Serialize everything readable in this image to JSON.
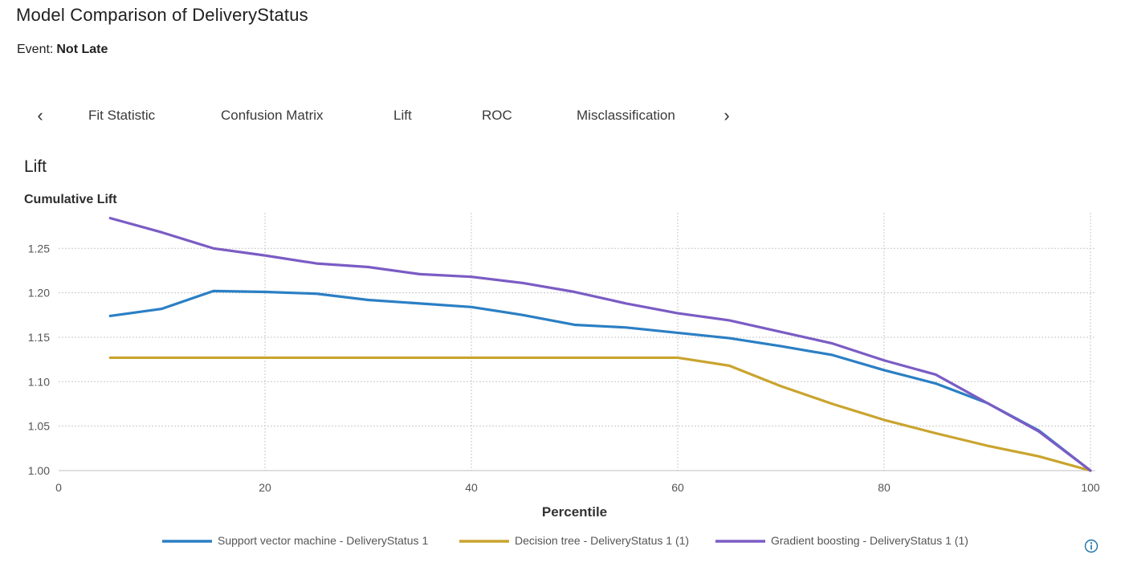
{
  "header": {
    "title": "Model Comparison of DeliveryStatus",
    "event_label": "Event:",
    "event_value": "Not Late"
  },
  "tabs": {
    "prev_icon": "chevron-left-icon",
    "next_icon": "chevron-right-icon",
    "items": [
      {
        "label": "Fit Statistic"
      },
      {
        "label": "Confusion Matrix"
      },
      {
        "label": "Lift"
      },
      {
        "label": "ROC"
      },
      {
        "label": "Misclassification"
      }
    ]
  },
  "section": {
    "title": "Lift"
  },
  "info_icon": "info-icon",
  "chart_data": {
    "type": "line",
    "title": "Cumulative Lift",
    "xlabel": "Percentile",
    "ylabel": "",
    "xlim": [
      0,
      100
    ],
    "ylim": [
      1.0,
      1.29
    ],
    "x_ticks": [
      0,
      20,
      40,
      60,
      80,
      100
    ],
    "y_ticks": [
      1.0,
      1.05,
      1.1,
      1.15,
      1.2,
      1.25
    ],
    "grid": true,
    "legend_position": "bottom",
    "x": [
      5,
      10,
      15,
      20,
      25,
      30,
      35,
      40,
      45,
      50,
      55,
      60,
      65,
      70,
      75,
      80,
      85,
      90,
      95,
      100
    ],
    "series": [
      {
        "name": "Support vector machine - DeliveryStatus 1",
        "color": "#2b7fc4",
        "values": [
          1.174,
          1.182,
          1.202,
          1.201,
          1.199,
          1.192,
          1.188,
          1.184,
          1.175,
          1.164,
          1.161,
          1.155,
          1.149,
          1.14,
          1.13,
          1.113,
          1.098,
          1.076,
          1.045,
          1.0
        ]
      },
      {
        "name": "Decision tree - DeliveryStatus 1 (1)",
        "color": "#c9a42e",
        "values": [
          1.127,
          1.127,
          1.127,
          1.127,
          1.127,
          1.127,
          1.127,
          1.127,
          1.127,
          1.127,
          1.127,
          1.127,
          1.118,
          1.095,
          1.075,
          1.057,
          1.042,
          1.028,
          1.016,
          1.0
        ]
      },
      {
        "name": "Gradient boosting - DeliveryStatus 1 (1)",
        "color": "#7b5cc4",
        "values": [
          1.284,
          1.268,
          1.25,
          1.242,
          1.233,
          1.229,
          1.221,
          1.218,
          1.211,
          1.201,
          1.188,
          1.177,
          1.169,
          1.156,
          1.143,
          1.124,
          1.108,
          1.076,
          1.044,
          1.0
        ]
      }
    ]
  }
}
